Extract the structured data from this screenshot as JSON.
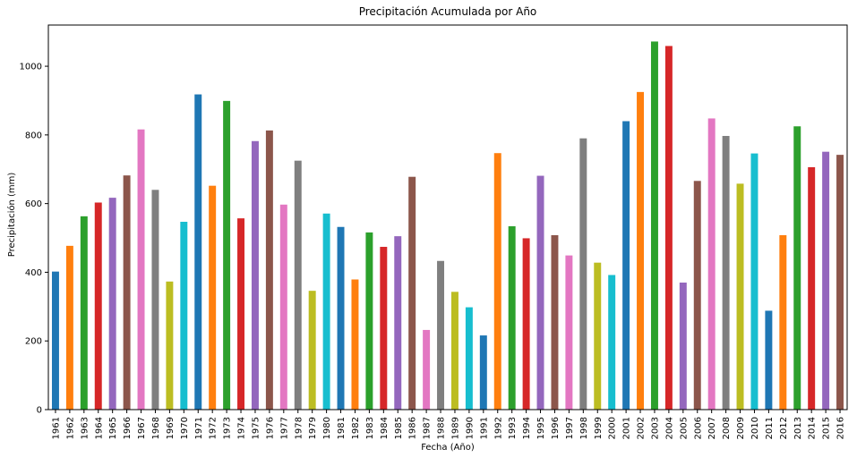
{
  "chart_data": {
    "type": "bar",
    "title": "Precipitación Acumulada por Año",
    "xlabel": "Fecha (Año)",
    "ylabel": "Precipitación (mm)",
    "ylim": [
      0,
      1120
    ],
    "yticks": [
      0,
      200,
      400,
      600,
      800,
      1000
    ],
    "grid": false,
    "legend": "none",
    "color_cycle": [
      "#1f77b4",
      "#ff7f0e",
      "#2ca02c",
      "#d62728",
      "#9467bd",
      "#8c564b",
      "#e377c2",
      "#7f7f7f",
      "#bcbd22",
      "#17becf"
    ],
    "categories": [
      "1961",
      "1962",
      "1963",
      "1964",
      "1965",
      "1966",
      "1967",
      "1968",
      "1969",
      "1970",
      "1971",
      "1972",
      "1973",
      "1974",
      "1975",
      "1976",
      "1977",
      "1978",
      "1979",
      "1980",
      "1981",
      "1982",
      "1983",
      "1984",
      "1985",
      "1986",
      "1987",
      "1988",
      "1989",
      "1990",
      "1991",
      "1992",
      "1993",
      "1994",
      "1995",
      "1996",
      "1997",
      "1998",
      "1999",
      "2000",
      "2001",
      "2002",
      "2003",
      "2004",
      "2005",
      "2006",
      "2007",
      "2008",
      "2009",
      "2010",
      "2011",
      "2012",
      "2013",
      "2014",
      "2015",
      "2016"
    ],
    "values": [
      402,
      477,
      563,
      603,
      617,
      682,
      816,
      640,
      373,
      547,
      918,
      652,
      899,
      557,
      782,
      813,
      597,
      725,
      346,
      571,
      532,
      379,
      516,
      474,
      505,
      678,
      232,
      433,
      343,
      298,
      216,
      747,
      534,
      499,
      681,
      508,
      449,
      790,
      428,
      392,
      840,
      925,
      1072,
      1059,
      370,
      666,
      848,
      797,
      658,
      746,
      288,
      508,
      825,
      706,
      751,
      742
    ]
  }
}
